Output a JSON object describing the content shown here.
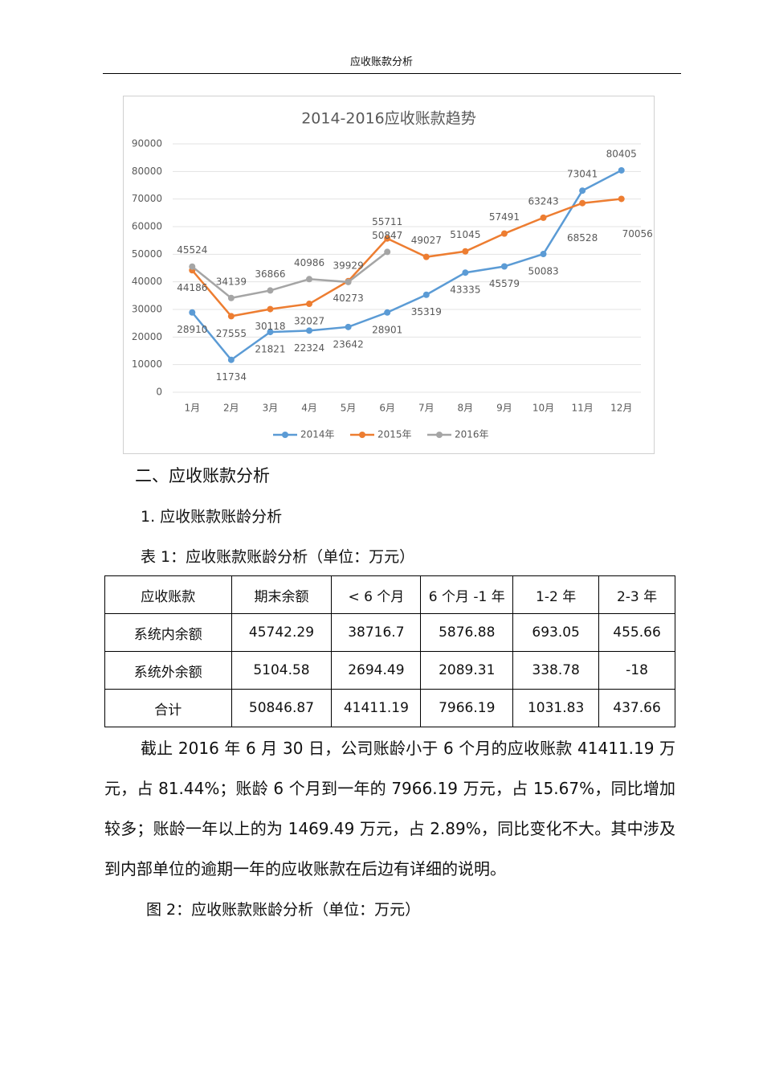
{
  "header": {
    "title": "应收账款分析"
  },
  "chart_data": {
    "type": "line",
    "title": "2014-2016应收账款趋势",
    "categories": [
      "1月",
      "2月",
      "3月",
      "4月",
      "5月",
      "6月",
      "7月",
      "8月",
      "9月",
      "10月",
      "11月",
      "12月"
    ],
    "series": [
      {
        "name": "2014年",
        "color": "#5b9bd5",
        "values": [
          28910,
          11734,
          21821,
          22324,
          23642,
          28901,
          35319,
          43335,
          45579,
          50083,
          73041,
          80405
        ]
      },
      {
        "name": "2015年",
        "color": "#ed7d31",
        "values": [
          44186,
          27555,
          30118,
          32027,
          40273,
          55711,
          49027,
          51045,
          57491,
          63243,
          68528,
          70056
        ]
      },
      {
        "name": "2016年",
        "color": "#a5a5a5",
        "values": [
          45524,
          34139,
          36866,
          40986,
          39929,
          50847,
          null,
          null,
          null,
          null,
          null,
          null
        ]
      }
    ],
    "ylim": [
      0,
      90000
    ],
    "yticks": [
      0,
      10000,
      20000,
      30000,
      40000,
      50000,
      60000,
      70000,
      80000,
      90000
    ],
    "grid": true,
    "legend": "bottom"
  },
  "sections": [
    {
      "heading": "二、应收账款分析"
    },
    {
      "heading": "1. 应收账款账龄分析"
    }
  ],
  "table": {
    "caption": "表 1：应收账款账龄分析（单位：万元）",
    "header": [
      "应收账款",
      "期末余额",
      "< 6 个月",
      "6 个月 -1 年",
      "1-2 年",
      "2-3 年"
    ],
    "rows": [
      [
        "系统内余额",
        "45742.29",
        "38716.7",
        "5876.88",
        "693.05",
        "455.66"
      ],
      [
        "系统外余额",
        "5104.58",
        "2694.49",
        "2089.31",
        "338.78",
        "-18"
      ],
      [
        "合计",
        "50846.87",
        "41411.19",
        "7966.19",
        "1031.83",
        "437.66"
      ]
    ]
  },
  "paragraph": "截止 2016 年 6 月 30 日，公司账龄小于 6 个月的应收账款 41411.19 万元，占 81.44%；账龄 6 个月到一年的 7966.19 万元，占 15.67%，同比增加较多；账龄一年以上的为 1469.49 万元，占 2.89%，同比变化不大。其中涉及到内部单位的逾期一年的应收账款在后边有详细的说明。",
  "figure_caption": "图 2：应收账款账龄分析（单位：万元）"
}
